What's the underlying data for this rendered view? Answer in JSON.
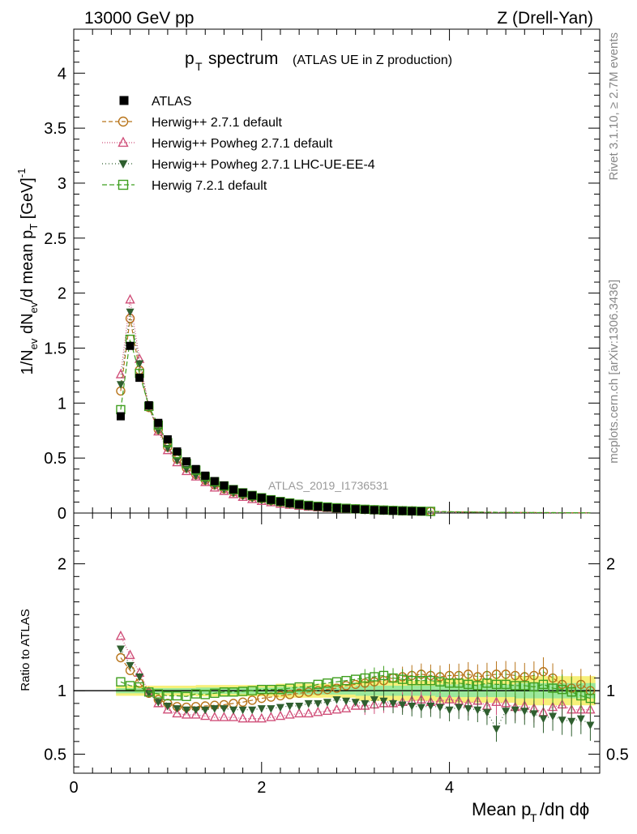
{
  "header": {
    "energy": "13000 GeV pp",
    "process": "Z (Drell-Yan)"
  },
  "side_labels": {
    "rivet": "Rivet 3.1.10, ≥ 2.7M events",
    "mcplots": "mcplots.cern.ch [arXiv:1306.3436]"
  },
  "watermark": "ATLAS_2019_I1736531",
  "chart_data": [
    {
      "type": "line",
      "title_main": "p",
      "title_sub": "T",
      "title_word": "spectrum",
      "title_note": "(ATLAS UE in Z production)",
      "ylabel": "1/N_ev dN_ev/d mean p_T [GeV]^-1",
      "ylim": [
        0,
        4.4
      ],
      "xlim": [
        0,
        5.6
      ],
      "yticks": [
        "0",
        "0.5",
        "1",
        "1.5",
        "2",
        "2.5",
        "3",
        "3.5",
        "4"
      ],
      "legend_placement": "top-left",
      "x": [
        0.5,
        0.6,
        0.7,
        0.8,
        0.9,
        1.0,
        1.1,
        1.2,
        1.3,
        1.4,
        1.5,
        1.6,
        1.7,
        1.8,
        1.9,
        2.0,
        2.1,
        2.2,
        2.3,
        2.4,
        2.5,
        2.6,
        2.7,
        2.8,
        2.9,
        3.0,
        3.1,
        3.2,
        3.3,
        3.4,
        3.5,
        3.6,
        3.7,
        3.8,
        3.9,
        4.0,
        4.1,
        4.2,
        4.3,
        4.4,
        4.5,
        4.6,
        4.7,
        4.8,
        4.9,
        5.0,
        5.1,
        5.2,
        5.3,
        5.4,
        5.5
      ],
      "series": [
        {
          "name": "ATLAS",
          "color": "#000000",
          "marker": "filled-square",
          "values": [
            0.88,
            1.52,
            1.23,
            0.98,
            0.82,
            0.67,
            0.56,
            0.47,
            0.4,
            0.34,
            0.29,
            0.25,
            0.215,
            0.185,
            0.16,
            0.138,
            0.12,
            0.104,
            0.09,
            0.078,
            0.068,
            0.059,
            0.052,
            0.045,
            0.04,
            0.035,
            0.031,
            0.027,
            0.024,
            0.021,
            0.019,
            0.017,
            0.015,
            0.013,
            0.012,
            0.011,
            0.0095,
            0.0085,
            0.0076,
            0.0068,
            0.006,
            0.0054,
            0.0048,
            0.0043,
            0.0039,
            0.0035,
            0.0031,
            0.0028,
            0.0025,
            0.0023,
            0.002
          ]
        },
        {
          "name": "Herwig++ 2.7.1 default",
          "color": "#b8741a",
          "marker": "open-circle",
          "dash": "5,3",
          "values": [
            1.11,
            1.77,
            1.3,
            0.96,
            0.76,
            0.6,
            0.49,
            0.41,
            0.35,
            0.3,
            0.256,
            0.222,
            0.193,
            0.168,
            0.148,
            0.13,
            0.114,
            0.1,
            0.088,
            0.077,
            0.068,
            0.06,
            0.053,
            0.047,
            0.042,
            0.037,
            0.033,
            0.029,
            0.026,
            0.023,
            0.021,
            0.019,
            0.017,
            0.015,
            0.013,
            0.012,
            0.011,
            0.0098,
            0.0087,
            0.0078,
            0.007,
            0.0062,
            0.0056,
            0.005,
            0.0045,
            0.004,
            0.0035,
            0.0031,
            0.0028,
            0.0025,
            0.0022
          ]
        },
        {
          "name": "Herwig++ Powheg 2.7.1 default",
          "color": "#d0507a",
          "marker": "open-triangle",
          "dash": "1,2",
          "values": [
            1.26,
            1.94,
            1.4,
            0.97,
            0.74,
            0.57,
            0.46,
            0.38,
            0.33,
            0.28,
            0.23,
            0.2,
            0.17,
            0.145,
            0.125,
            0.108,
            0.096,
            0.083,
            0.073,
            0.064,
            0.056,
            0.049,
            0.044,
            0.039,
            0.035,
            0.031,
            0.027,
            0.024,
            0.021,
            0.019,
            0.017,
            0.015,
            0.013,
            0.012,
            0.011,
            0.0095,
            0.0085,
            0.0075,
            0.0067,
            0.006,
            0.0053,
            0.0047,
            0.0042,
            0.0037,
            0.0034,
            0.003,
            0.0027,
            0.0024,
            0.0021,
            0.0019,
            0.0017
          ]
        },
        {
          "name": "Herwig++ Powheg 2.7.1 LHC-UE-EE-4",
          "color": "#2f5f2f",
          "marker": "filled-triangle-down",
          "dash": "1,3",
          "values": [
            1.17,
            1.83,
            1.36,
            0.96,
            0.75,
            0.59,
            0.48,
            0.4,
            0.34,
            0.29,
            0.25,
            0.215,
            0.183,
            0.157,
            0.136,
            0.118,
            0.103,
            0.09,
            0.079,
            0.069,
            0.061,
            0.053,
            0.047,
            0.042,
            0.037,
            0.032,
            0.028,
            0.025,
            0.022,
            0.019,
            0.017,
            0.015,
            0.013,
            0.0115,
            0.0105,
            0.0093,
            0.0083,
            0.0073,
            0.0065,
            0.0058,
            0.0051,
            0.0046,
            0.0041,
            0.0036,
            0.0032,
            0.0029,
            0.0026,
            0.0023,
            0.002,
            0.0018,
            0.0016
          ]
        },
        {
          "name": "Herwig 7.2.1 default",
          "color": "#3f9f1f",
          "marker": "open-square",
          "dash": "6,3",
          "values": [
            0.94,
            1.58,
            1.27,
            0.97,
            0.8,
            0.64,
            0.54,
            0.45,
            0.39,
            0.33,
            0.285,
            0.247,
            0.213,
            0.184,
            0.16,
            0.139,
            0.121,
            0.105,
            0.092,
            0.08,
            0.07,
            0.062,
            0.055,
            0.048,
            0.043,
            0.038,
            0.034,
            0.03,
            0.027,
            0.024,
            0.021,
            0.019,
            0.017,
            0.015,
            0.0135,
            0.012,
            0.011,
            0.0097,
            0.0087,
            0.0077,
            0.0069,
            0.0062,
            0.0055,
            0.0049,
            0.0044,
            0.004,
            0.0036,
            0.0032,
            0.0028,
            0.0025,
            0.0022
          ]
        }
      ]
    },
    {
      "type": "line",
      "ylabel": "Ratio to ATLAS",
      "xlabel_main": "Mean p",
      "xlabel_sub": "T",
      "xlabel_tail": "/dη dϕ",
      "ylim": [
        0.35,
        2.4
      ],
      "xlim": [
        0,
        5.6
      ],
      "yticks": [
        "0.5",
        "1",
        "2"
      ],
      "xticks": [
        "0",
        "2",
        "4"
      ],
      "band": {
        "x": [
          0.45,
          5.55
        ],
        "inner": [
          [
            0.98,
            1.02
          ],
          [
            0.975,
            1.025
          ],
          [
            0.97,
            1.03
          ],
          [
            0.96,
            1.04
          ],
          [
            0.95,
            1.05
          ],
          [
            0.94,
            1.06
          ]
        ],
        "outer": [
          [
            0.96,
            1.04
          ],
          [
            0.955,
            1.045
          ],
          [
            0.945,
            1.055
          ],
          [
            0.92,
            1.08
          ],
          [
            0.905,
            1.095
          ],
          [
            0.885,
            1.115
          ]
        ]
      },
      "series": [
        {
          "name": "Herwig++ 2.7.1 default",
          "values": [
            1.26,
            1.16,
            1.06,
            0.98,
            0.93,
            0.9,
            0.875,
            0.87,
            0.875,
            0.88,
            0.885,
            0.89,
            0.9,
            0.91,
            0.925,
            0.94,
            0.95,
            0.96,
            0.97,
            0.98,
            0.99,
            1.0,
            1.01,
            1.02,
            1.04,
            1.05,
            1.06,
            1.07,
            1.08,
            1.1,
            1.11,
            1.12,
            1.13,
            1.12,
            1.11,
            1.12,
            1.12,
            1.13,
            1.11,
            1.12,
            1.13,
            1.13,
            1.12,
            1.11,
            1.12,
            1.15,
            1.1,
            1.05,
            1.02,
            1.05,
            1.0
          ]
        },
        {
          "name": "Herwig++ Powheg 2.7.1 default",
          "values": [
            1.43,
            1.28,
            1.14,
            0.99,
            0.9,
            0.85,
            0.82,
            0.81,
            0.81,
            0.8,
            0.79,
            0.79,
            0.79,
            0.78,
            0.78,
            0.78,
            0.79,
            0.8,
            0.81,
            0.82,
            0.82,
            0.83,
            0.84,
            0.85,
            0.86,
            0.88,
            0.88,
            0.89,
            0.9,
            0.9,
            0.91,
            0.92,
            0.93,
            0.91,
            0.92,
            0.93,
            0.92,
            0.9,
            0.92,
            0.88,
            0.91,
            0.9,
            0.87,
            0.88,
            0.86,
            0.83,
            0.87,
            0.89,
            0.85,
            0.85,
            0.85
          ]
        },
        {
          "name": "Herwig++ Powheg 2.7.1 LHC-UE-EE-4",
          "values": [
            1.33,
            1.2,
            1.11,
            0.98,
            0.91,
            0.88,
            0.86,
            0.85,
            0.85,
            0.85,
            0.86,
            0.86,
            0.85,
            0.85,
            0.85,
            0.86,
            0.86,
            0.87,
            0.88,
            0.88,
            0.9,
            0.9,
            0.91,
            0.93,
            0.92,
            0.91,
            0.9,
            0.93,
            0.92,
            0.9,
            0.89,
            0.88,
            0.87,
            0.88,
            0.87,
            0.85,
            0.87,
            0.86,
            0.85,
            0.83,
            0.7,
            0.84,
            0.85,
            0.84,
            0.82,
            0.78,
            0.8,
            0.77,
            0.76,
            0.78,
            0.73
          ]
        },
        {
          "name": "Herwig 7.2.1 default",
          "values": [
            1.07,
            1.04,
            1.03,
            0.99,
            0.975,
            0.96,
            0.96,
            0.955,
            0.975,
            0.97,
            0.98,
            0.99,
            0.99,
            0.995,
            1.0,
            1.01,
            1.01,
            1.01,
            1.02,
            1.03,
            1.03,
            1.05,
            1.06,
            1.07,
            1.08,
            1.09,
            1.1,
            1.11,
            1.12,
            1.1,
            1.09,
            1.08,
            1.08,
            1.08,
            1.07,
            1.06,
            1.06,
            1.05,
            1.04,
            1.06,
            1.05,
            1.05,
            1.04,
            1.04,
            1.03,
            1.05,
            1.02,
            1.01,
            0.99,
            0.96,
            0.94
          ]
        }
      ]
    }
  ]
}
